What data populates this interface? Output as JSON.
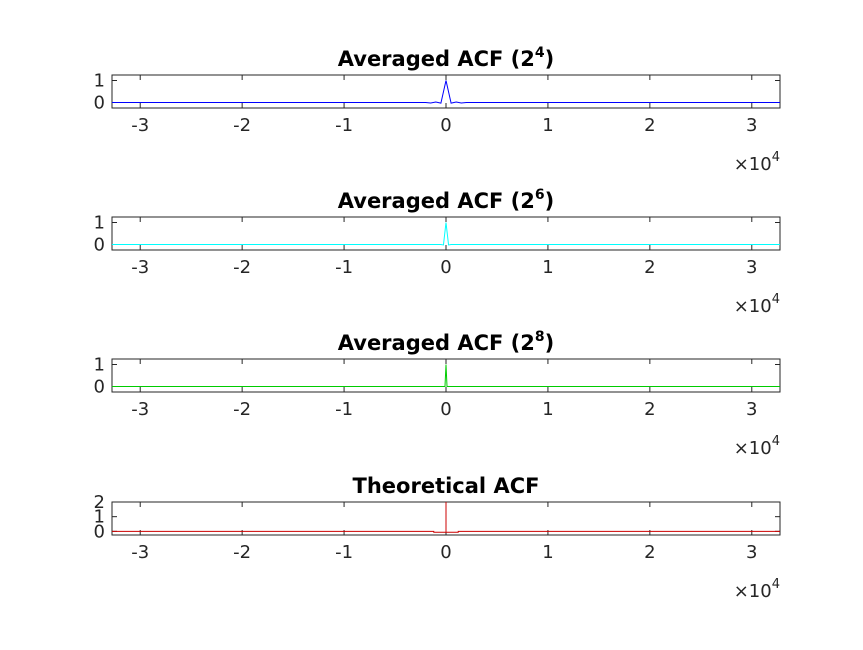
{
  "chart_data": [
    {
      "type": "line",
      "title": "Averaged ACF (2",
      "title_exponent": "4",
      "title_close": ")",
      "color": "#0000ff",
      "xlim": [
        -32768,
        32768
      ],
      "ylim": [
        -0.25,
        1.25
      ],
      "xticks": [
        -30000,
        -20000,
        -10000,
        0,
        10000,
        20000,
        30000
      ],
      "xtick_labels": [
        "-3",
        "-2",
        "-1",
        "0",
        "1",
        "2",
        "3"
      ],
      "yticks": [
        0,
        1
      ],
      "ytick_labels": [
        "0",
        "1"
      ],
      "x_multiplier": "×10",
      "x_multiplier_exponent": "4",
      "series": [
        {
          "x": [
            -32768,
            -2000,
            -1500,
            -1000,
            -500,
            0,
            500,
            1000,
            1500,
            2000,
            32768
          ],
          "y": [
            0,
            0,
            -0.02,
            0.02,
            -0.03,
            1,
            -0.03,
            0.02,
            -0.02,
            0,
            0
          ]
        }
      ]
    },
    {
      "type": "line",
      "title": "Averaged ACF (2",
      "title_exponent": "6",
      "title_close": ")",
      "color": "#00ffff",
      "xlim": [
        -32768,
        32768
      ],
      "ylim": [
        -0.25,
        1.25
      ],
      "xticks": [
        -30000,
        -20000,
        -10000,
        0,
        10000,
        20000,
        30000
      ],
      "xtick_labels": [
        "-3",
        "-2",
        "-1",
        "0",
        "1",
        "2",
        "3"
      ],
      "yticks": [
        0,
        1
      ],
      "ytick_labels": [
        "0",
        "1"
      ],
      "x_multiplier": "×10",
      "x_multiplier_exponent": "4",
      "series": [
        {
          "x": [
            -32768,
            -500,
            -250,
            0,
            250,
            500,
            32768
          ],
          "y": [
            0,
            0,
            -0.02,
            1,
            -0.02,
            0,
            0
          ]
        }
      ]
    },
    {
      "type": "line",
      "title": "Averaged ACF (2",
      "title_exponent": "8",
      "title_close": ")",
      "color": "#00cc00",
      "xlim": [
        -32768,
        32768
      ],
      "ylim": [
        -0.25,
        1.25
      ],
      "xticks": [
        -30000,
        -20000,
        -10000,
        0,
        10000,
        20000,
        30000
      ],
      "xtick_labels": [
        "-3",
        "-2",
        "-1",
        "0",
        "1",
        "2",
        "3"
      ],
      "yticks": [
        0,
        1
      ],
      "ytick_labels": [
        "0",
        "1"
      ],
      "x_multiplier": "×10",
      "x_multiplier_exponent": "4",
      "series": [
        {
          "x": [
            -32768,
            -100,
            0,
            100,
            32768
          ],
          "y": [
            0,
            0,
            1,
            0,
            0
          ]
        }
      ]
    },
    {
      "type": "line",
      "title": "Theoretical ACF",
      "title_exponent": "",
      "title_close": "",
      "color": "#cc0000",
      "xlim": [
        -32768,
        32768
      ],
      "ylim": [
        -0.25,
        2
      ],
      "xticks": [
        -30000,
        -20000,
        -10000,
        0,
        10000,
        20000,
        30000
      ],
      "xtick_labels": [
        "-3",
        "-2",
        "-1",
        "0",
        "1",
        "2",
        "3"
      ],
      "yticks": [
        0,
        1,
        2
      ],
      "ytick_labels": [
        "0",
        "1",
        "2"
      ],
      "x_multiplier": "×10",
      "x_multiplier_exponent": "4",
      "series": [
        {
          "x": [
            -32768,
            -1200,
            -1200,
            0,
            0,
            0,
            1200,
            1200,
            32768
          ],
          "y": [
            0,
            0,
            -0.06,
            -0.06,
            2,
            -0.06,
            -0.06,
            0,
            0
          ]
        }
      ]
    }
  ]
}
